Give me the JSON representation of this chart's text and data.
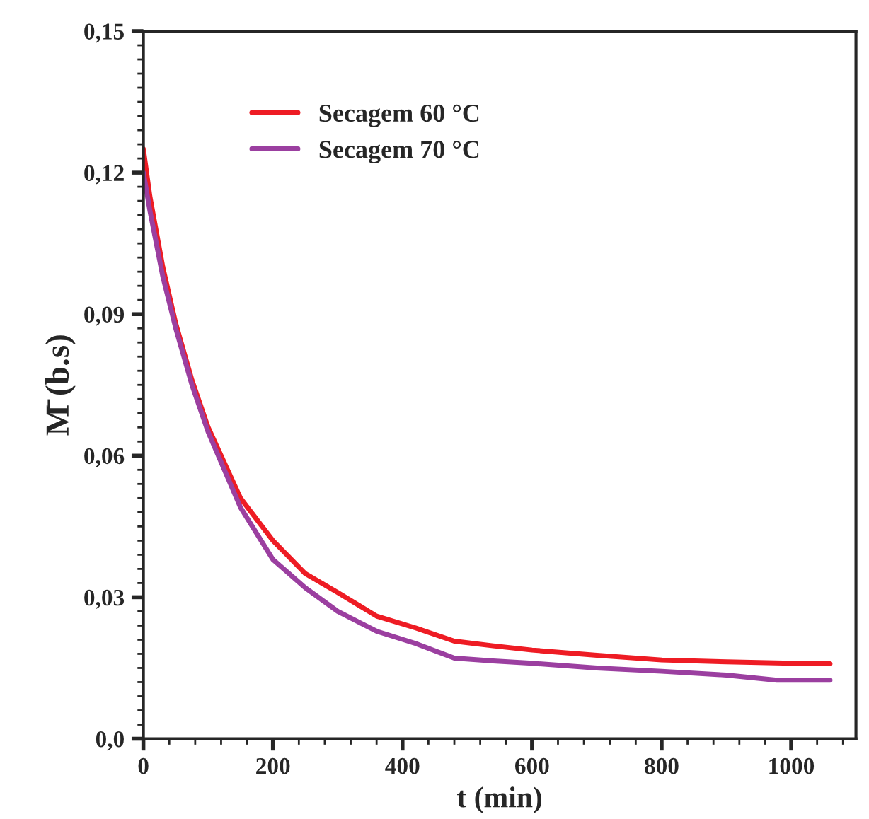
{
  "chart_data": {
    "type": "line",
    "xlabel": "t (min)",
    "ylabel": "M̄ (b.s)",
    "xlim": [
      0,
      1100
    ],
    "xticks": [
      0,
      200,
      400,
      600,
      800,
      1000
    ],
    "ylim": [
      0,
      0.15
    ],
    "yticks": [
      {
        "value": 0,
        "label": "0,0"
      },
      {
        "value": 0.03,
        "label": "0,03"
      },
      {
        "value": 0.06,
        "label": "0,06"
      },
      {
        "value": 0.09,
        "label": "0,09"
      },
      {
        "value": 0.12,
        "label": "0,12"
      },
      {
        "value": 0.15,
        "label": "0,15"
      }
    ],
    "legend": "top",
    "grid": false,
    "marker": "none",
    "line_style": "solid",
    "series": [
      {
        "name": "Secagem 60 °C",
        "color": "#ee1c24",
        "x": [
          0,
          10,
          30,
          50,
          75,
          100,
          150,
          200,
          250,
          300,
          360,
          420,
          480,
          540,
          600,
          700,
          800,
          900,
          1000,
          1060
        ],
        "values": [
          0.125,
          0.115,
          0.1,
          0.088,
          0.076,
          0.066,
          0.051,
          0.042,
          0.035,
          0.031,
          0.026,
          0.0235,
          0.0207,
          0.0197,
          0.0188,
          0.0177,
          0.0167,
          0.0163,
          0.016,
          0.0159
        ]
      },
      {
        "name": "Secagem 70 °C",
        "color": "#9b3fa0",
        "x": [
          0,
          10,
          30,
          50,
          75,
          100,
          150,
          200,
          250,
          300,
          360,
          420,
          480,
          540,
          600,
          700,
          800,
          900,
          978,
          1060
        ],
        "values": [
          0.12,
          0.112,
          0.098,
          0.087,
          0.075,
          0.065,
          0.049,
          0.038,
          0.032,
          0.027,
          0.0228,
          0.0202,
          0.0171,
          0.0165,
          0.016,
          0.015,
          0.0143,
          0.0135,
          0.0124,
          0.0124
        ]
      }
    ]
  }
}
